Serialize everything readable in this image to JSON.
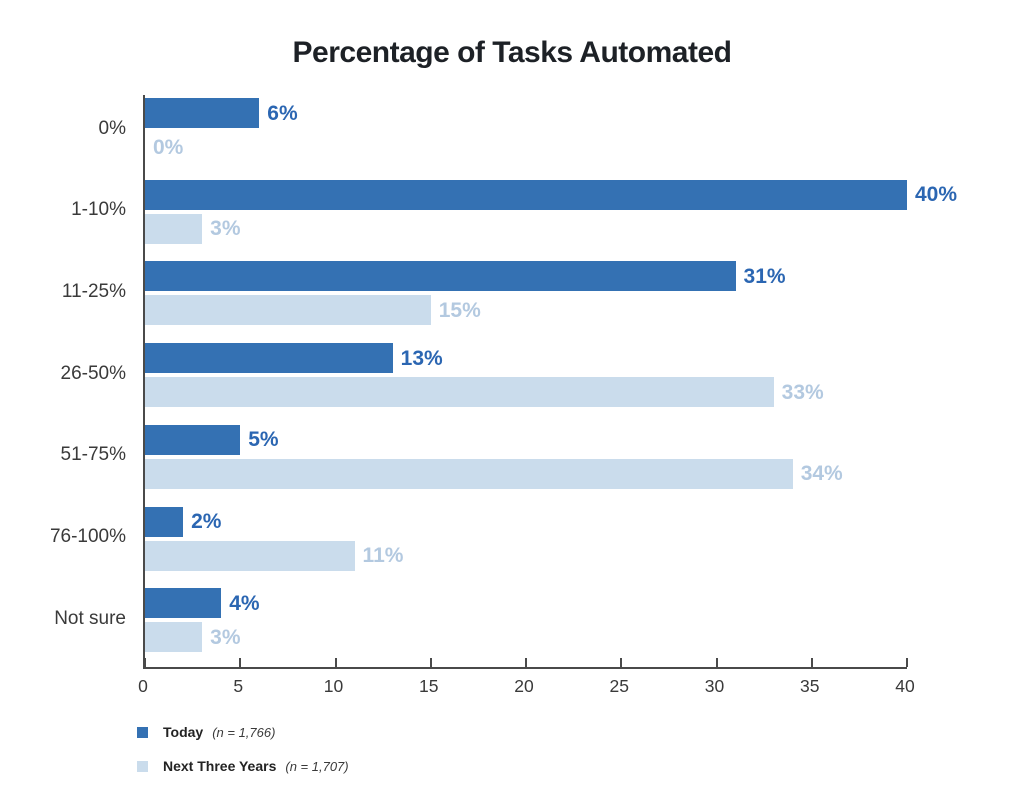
{
  "title": "Percentage of Tasks Automated",
  "chart_data": {
    "type": "bar",
    "orientation": "horizontal",
    "title": "Percentage of Tasks Automated",
    "categories": [
      "0%",
      "1-10%",
      "11-25%",
      "26-50%",
      "51-75%",
      "76-100%",
      "Not sure"
    ],
    "series": [
      {
        "name": "Today",
        "n_label": "(n = 1,766)",
        "color": "#3471b3",
        "label_color": "#2b66b2",
        "values": [
          6,
          40,
          31,
          13,
          5,
          2,
          4
        ]
      },
      {
        "name": "Next Three Years",
        "n_label": "(n = 1,707)",
        "color": "#cadcec",
        "label_color": "#b3c9e0",
        "values": [
          0,
          3,
          15,
          33,
          34,
          11,
          3
        ]
      }
    ],
    "value_suffix": "%",
    "xlim": [
      0,
      40
    ],
    "x_ticks": [
      0,
      5,
      10,
      15,
      20,
      25,
      30,
      35,
      40
    ],
    "legend_position": "bottom-left",
    "grid": false,
    "axis_color": "#4a4a4a",
    "text_color": "#3a3a3a"
  }
}
